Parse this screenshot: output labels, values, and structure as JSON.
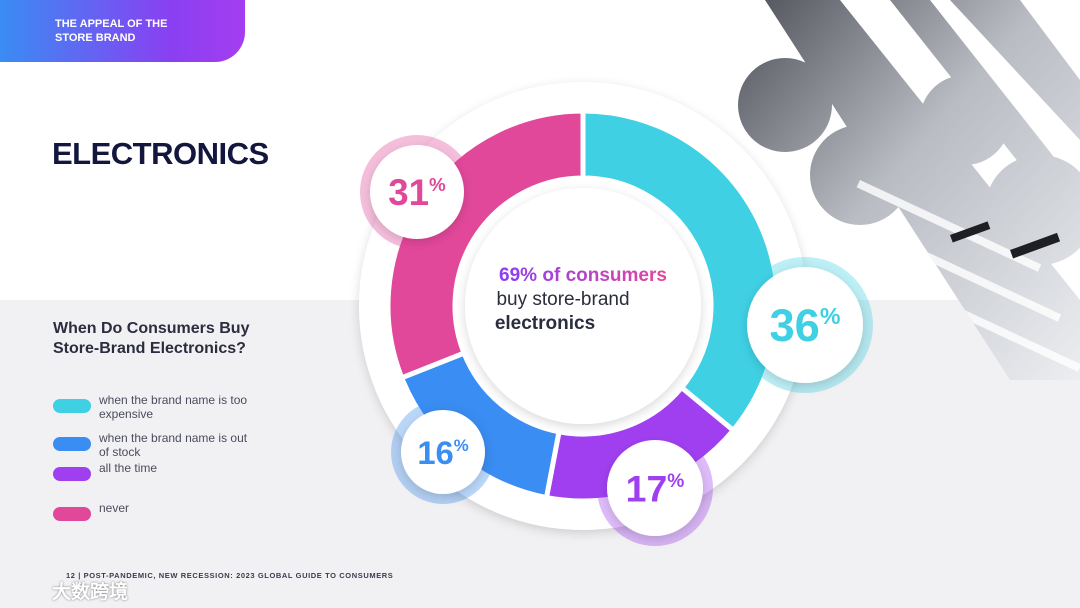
{
  "header": {
    "tag": "THE APPEAL OF THE STORE BRAND",
    "title": "ELECTRONICS"
  },
  "chart_data": {
    "type": "donut",
    "title": "When Do Consumers Buy Store-Brand Electronics?",
    "center_text": [
      "69% of consumers",
      "buy store-brand",
      "electronics"
    ],
    "categories": [
      "when the brand name is too expensive",
      "all the time",
      "when the brand name is out of stock",
      "never"
    ],
    "values": [
      36,
      17,
      16,
      31
    ],
    "value_labels": [
      "36%",
      "17%",
      "16%",
      "31%"
    ],
    "colors": [
      "#3fd0e4",
      "#a03ff0",
      "#3a8df2",
      "#e2489a"
    ],
    "legend_order": [
      0,
      2,
      1,
      3
    ]
  },
  "footer": {
    "page": "12",
    "text": "POST-PANDEMIC, NEW RECESSION: 2023 GLOBAL GUIDE TO CONSUMERS"
  },
  "watermark": "大数跨境"
}
